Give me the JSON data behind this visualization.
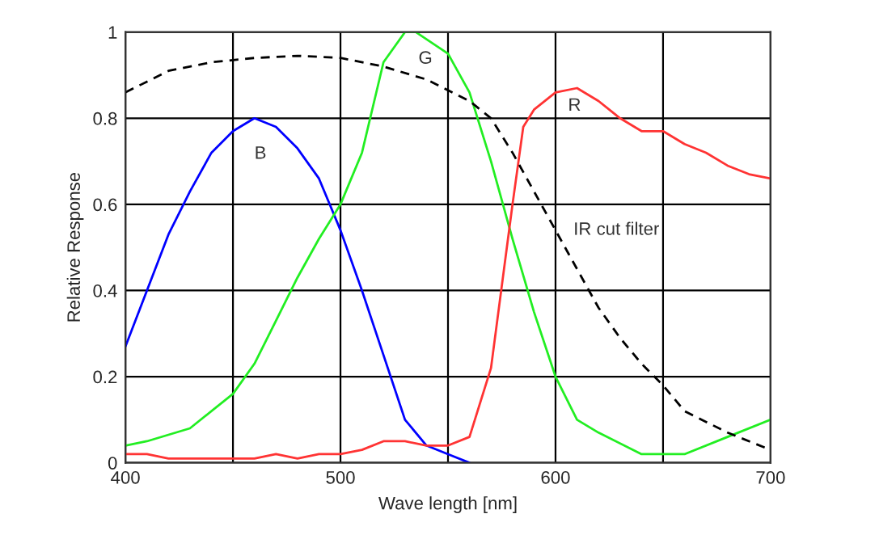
{
  "chart_data": {
    "type": "line",
    "xlabel": "Wave length [nm]",
    "ylabel": "Relative Response",
    "xlim": [
      400,
      700
    ],
    "ylim": [
      0,
      1
    ],
    "xticks": [
      400,
      {
        "value": 450,
        "label": null
      },
      500,
      {
        "value": 550,
        "label": null
      },
      600,
      {
        "value": 650,
        "label": null
      },
      700
    ],
    "yticks": [
      0,
      0.2,
      0.4,
      0.6,
      0.8,
      1
    ],
    "grid": true,
    "legend": false,
    "marker": "none",
    "series": [
      {
        "name": "B",
        "color": "#0000ff",
        "line_style": "solid",
        "x": [
          400,
          410,
          420,
          430,
          440,
          450,
          460,
          470,
          480,
          490,
          500,
          510,
          520,
          530,
          540,
          550,
          560
        ],
        "values": [
          0.27,
          0.4,
          0.53,
          0.63,
          0.72,
          0.77,
          0.8,
          0.78,
          0.73,
          0.66,
          0.54,
          0.4,
          0.25,
          0.1,
          0.04,
          0.02,
          0.0
        ]
      },
      {
        "name": "G",
        "color": "#22ee22",
        "line_style": "solid",
        "x": [
          400,
          410,
          430,
          450,
          460,
          470,
          480,
          490,
          500,
          510,
          520,
          530,
          535,
          550,
          560,
          570,
          580,
          590,
          600,
          610,
          620,
          640,
          660,
          680,
          700
        ],
        "values": [
          0.04,
          0.05,
          0.08,
          0.16,
          0.23,
          0.33,
          0.43,
          0.52,
          0.6,
          0.72,
          0.93,
          1.0,
          1.0,
          0.95,
          0.86,
          0.7,
          0.52,
          0.35,
          0.2,
          0.1,
          0.07,
          0.02,
          0.02,
          0.06,
          0.1
        ]
      },
      {
        "name": "R",
        "color": "#ff3333",
        "line_style": "solid",
        "x": [
          400,
          410,
          420,
          440,
          460,
          470,
          480,
          490,
          500,
          510,
          520,
          530,
          540,
          550,
          560,
          570,
          580,
          585,
          590,
          600,
          610,
          620,
          630,
          640,
          650,
          660,
          670,
          680,
          690,
          700
        ],
        "values": [
          0.02,
          0.02,
          0.01,
          0.01,
          0.01,
          0.02,
          0.01,
          0.02,
          0.02,
          0.03,
          0.05,
          0.05,
          0.04,
          0.04,
          0.06,
          0.22,
          0.6,
          0.78,
          0.82,
          0.86,
          0.87,
          0.84,
          0.8,
          0.77,
          0.77,
          0.74,
          0.72,
          0.69,
          0.67,
          0.66
        ]
      },
      {
        "name": "IR cut filter",
        "color": "#000000",
        "line_style": "dashed",
        "x": [
          400,
          420,
          440,
          460,
          480,
          500,
          520,
          540,
          560,
          570,
          580,
          590,
          600,
          610,
          620,
          630,
          640,
          650,
          660,
          680,
          700
        ],
        "values": [
          0.86,
          0.91,
          0.93,
          0.94,
          0.945,
          0.94,
          0.92,
          0.89,
          0.84,
          0.8,
          0.72,
          0.63,
          0.54,
          0.45,
          0.36,
          0.29,
          0.23,
          0.18,
          0.12,
          0.07,
          0.03
        ]
      }
    ]
  }
}
